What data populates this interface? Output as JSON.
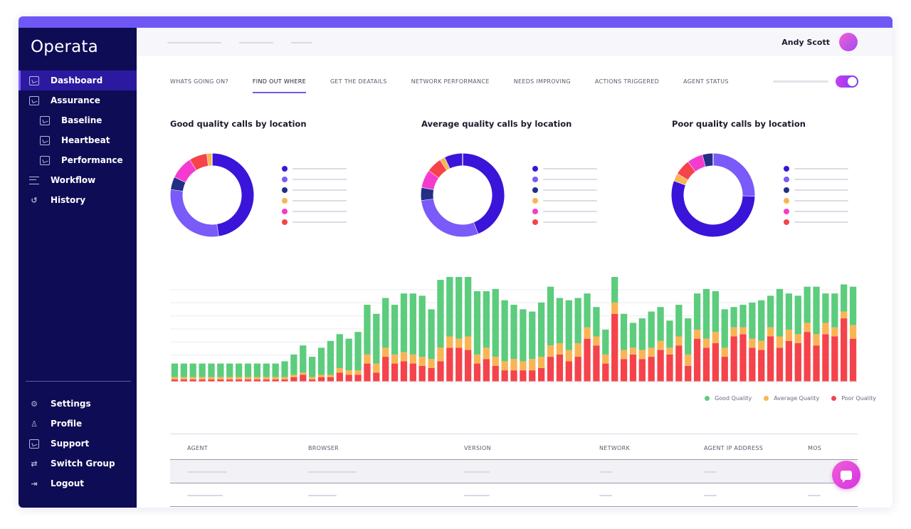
{
  "app": {
    "logo": "Operata"
  },
  "sidebar": {
    "items": [
      {
        "label": "Dashboard",
        "icon": "dashboard-icon",
        "active": true,
        "sub": false
      },
      {
        "label": "Assurance",
        "icon": "assurance-icon",
        "active": false,
        "sub": false
      },
      {
        "label": "Baseline",
        "icon": "baseline-icon",
        "active": false,
        "sub": true
      },
      {
        "label": "Heartbeat",
        "icon": "heartbeat-icon",
        "active": false,
        "sub": true
      },
      {
        "label": "Performance",
        "icon": "performance-icon",
        "active": false,
        "sub": true
      },
      {
        "label": "Workflow",
        "icon": "workflow-icon",
        "active": false,
        "sub": false
      },
      {
        "label": "History",
        "icon": "history-icon",
        "active": false,
        "sub": false
      }
    ],
    "bottom_items": [
      {
        "label": "Settings",
        "icon": "settings-icon"
      },
      {
        "label": "Profile",
        "icon": "profile-icon"
      },
      {
        "label": "Support",
        "icon": "support-icon"
      },
      {
        "label": "Switch Group",
        "icon": "switch-group-icon"
      },
      {
        "label": "Logout",
        "icon": "logout-icon"
      }
    ]
  },
  "header": {
    "user_name": "Andy Scott"
  },
  "tabs": [
    {
      "label": "WHATS GOING ON?",
      "active": false
    },
    {
      "label": "FIND OUT WHERE",
      "active": true
    },
    {
      "label": "GET THE DEATAILS",
      "active": false
    },
    {
      "label": "NETWORK PERFORMANCE",
      "active": false
    },
    {
      "label": "NEEDS IMPROVING",
      "active": false
    },
    {
      "label": "ACTIONS TRIGGERED",
      "active": false
    },
    {
      "label": "AGENT STATUS",
      "active": false
    }
  ],
  "toggle": {
    "on": true
  },
  "colors": {
    "purple_dark": "#3b14d9",
    "purple_light": "#7a5af8",
    "navy": "#232e85",
    "orange": "#f9b554",
    "pink": "#f53bcf",
    "red": "#f5434b",
    "good": "#5ccc7d",
    "average": "#f9b554",
    "poor": "#f5434b"
  },
  "chart_data": [
    {
      "type": "pie",
      "title": "Good quality calls by location",
      "values": [
        48,
        30,
        5,
        9,
        7,
        2
      ],
      "colors": [
        "#3b14d9",
        "#7a5af8",
        "#232e85",
        "#f53bcf",
        "#f5434b",
        "#f9b554"
      ]
    },
    {
      "type": "pie",
      "title": "Average quality calls by location",
      "values": [
        44,
        29,
        5,
        7,
        6,
        2,
        7
      ],
      "colors": [
        "#3b14d9",
        "#7a5af8",
        "#232e85",
        "#f53bcf",
        "#f5434b",
        "#f9b554",
        "#3b14d9"
      ]
    },
    {
      "type": "pie",
      "title": "Poor quality calls by location",
      "values": [
        25,
        54,
        3,
        6,
        6,
        4
      ],
      "colors": [
        "#7a5af8",
        "#3b14d9",
        "#f9b554",
        "#f5434b",
        "#f53bcf",
        "#232e85"
      ]
    },
    {
      "type": "bar",
      "stacked": true,
      "series": [
        {
          "name": "Good Quality",
          "values": [
            6,
            6,
            6,
            6,
            6,
            6,
            6,
            6,
            6,
            6,
            6,
            6,
            7,
            9,
            12,
            9,
            12,
            15,
            15,
            14,
            17,
            22,
            22,
            22,
            22,
            26,
            27,
            27,
            22,
            30,
            28,
            29,
            32,
            28,
            25,
            30,
            27,
            24,
            23,
            21,
            24,
            26,
            20,
            22,
            20,
            15,
            13,
            11,
            13,
            16,
            11,
            14,
            16,
            15,
            12,
            14,
            16,
            16,
            22,
            18,
            17,
            9,
            10,
            16,
            18,
            14,
            21,
            16,
            17,
            16,
            21,
            13,
            15,
            12,
            17
          ]
        },
        {
          "name": "Average Quality",
          "values": [
            1,
            1,
            1,
            1,
            1,
            1,
            1,
            1,
            1,
            1,
            1,
            1,
            1,
            1,
            1,
            1,
            1,
            1,
            2,
            2,
            2,
            4,
            4,
            4,
            4,
            4,
            4,
            4,
            4,
            6,
            5,
            4,
            6,
            4,
            5,
            4,
            4,
            5,
            4,
            5,
            5,
            5,
            5,
            5,
            6,
            5,
            4,
            4,
            5,
            4,
            3,
            4,
            4,
            4,
            3,
            4,
            5,
            4,
            4,
            5,
            4,
            4,
            3,
            4,
            4,
            4,
            5,
            5,
            4,
            4,
            5,
            5,
            4,
            3,
            6
          ]
        },
        {
          "name": "Poor Quality",
          "values": [
            1,
            1,
            1,
            1,
            1,
            1,
            1,
            1,
            1,
            1,
            1,
            1,
            1,
            2,
            3,
            1,
            2,
            2,
            4,
            3,
            3,
            8,
            4,
            11,
            8,
            9,
            8,
            7,
            6,
            9,
            15,
            15,
            14,
            8,
            10,
            7,
            5,
            5,
            5,
            5,
            6,
            11,
            12,
            9,
            11,
            19,
            16,
            8,
            30,
            10,
            12,
            10,
            11,
            14,
            12,
            16,
            7,
            19,
            15,
            17,
            11,
            20,
            21,
            15,
            14,
            20,
            15,
            18,
            17,
            22,
            16,
            21,
            20,
            28,
            19
          ]
        }
      ],
      "legend_position": "bottom-right",
      "grid": true
    }
  ],
  "table": {
    "columns": [
      "AGENT",
      "BROWSER",
      "VERSION",
      "NETWORK",
      "AGENT IP ADDRESS",
      "MOS"
    ],
    "row_count": 2
  }
}
